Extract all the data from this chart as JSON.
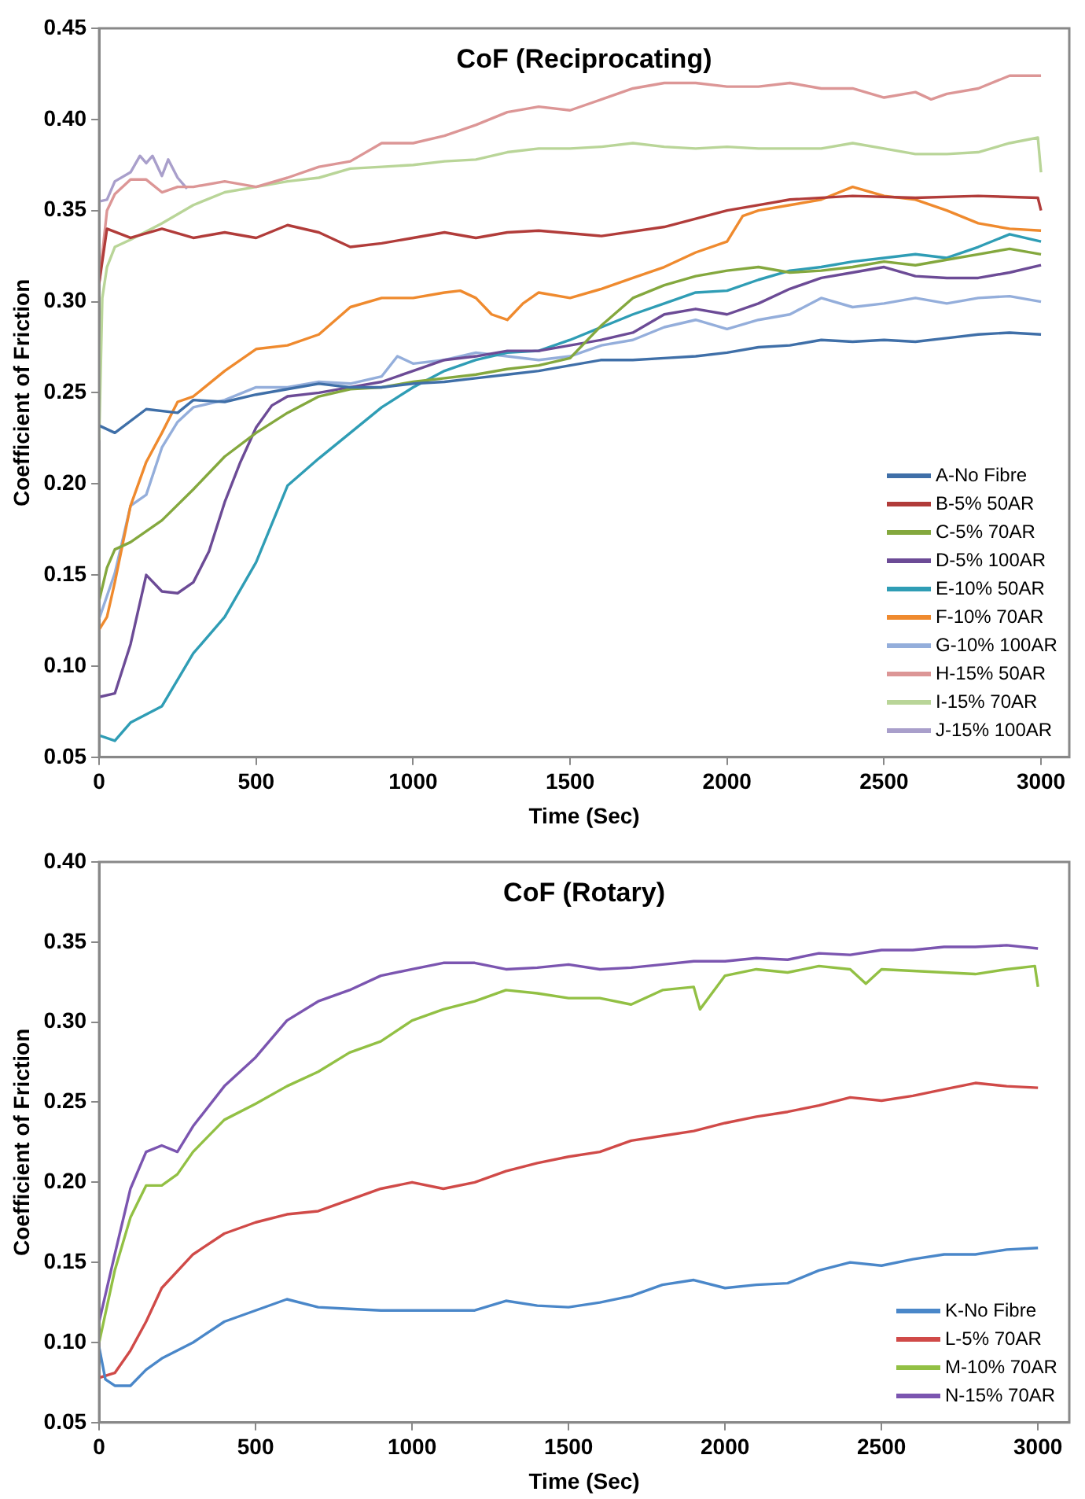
{
  "chart_data": [
    {
      "type": "line",
      "title": "CoF (Reciprocating)",
      "xlabel": "Time (Sec)",
      "ylabel": "Coefficient of Friction",
      "xlim": [
        0,
        3090
      ],
      "xticks": [
        0,
        500,
        1000,
        1500,
        2000,
        2500,
        3000
      ],
      "ylim": [
        0.05,
        0.45
      ],
      "yticks": [
        0.05,
        {
          "value": 0.1,
          "label": "0.10"
        },
        0.15,
        {
          "value": 0.2,
          "label": "0.20"
        },
        0.25,
        {
          "value": 0.3,
          "label": "0.30"
        },
        0.35,
        {
          "value": 0.4,
          "label": "0.40"
        },
        0.45
      ],
      "grid": false,
      "legend": "bottom right",
      "marker": "none",
      "line_style": "solid",
      "series": [
        {
          "name": "A-No Fibre",
          "color": "#3f6fa8",
          "x": [
            0,
            50,
            150,
            250,
            300,
            400,
            500,
            600,
            700,
            800,
            900,
            1000,
            1100,
            1200,
            1300,
            1400,
            1500,
            1600,
            1700,
            1800,
            1900,
            2000,
            2100,
            2200,
            2300,
            2400,
            2500,
            2600,
            2700,
            2800,
            2900,
            3000
          ],
          "values": [
            0.232,
            0.228,
            0.241,
            0.239,
            0.246,
            0.245,
            0.249,
            0.252,
            0.255,
            0.253,
            0.253,
            0.255,
            0.256,
            0.258,
            0.26,
            0.262,
            0.265,
            0.268,
            0.268,
            0.269,
            0.27,
            0.272,
            0.275,
            0.276,
            0.279,
            0.278,
            0.279,
            0.278,
            0.28,
            0.282,
            0.283,
            0.282
          ]
        },
        {
          "name": "B-5% 50AR",
          "color": "#b13c3a",
          "x": [
            0,
            25,
            100,
            200,
            300,
            400,
            500,
            600,
            700,
            800,
            900,
            1000,
            1100,
            1200,
            1300,
            1400,
            1600,
            1800,
            2000,
            2200,
            2400,
            2600,
            2800,
            2990,
            3000
          ],
          "values": [
            0.31,
            0.34,
            0.335,
            0.34,
            0.335,
            0.338,
            0.335,
            0.342,
            0.338,
            0.33,
            0.332,
            0.335,
            0.338,
            0.335,
            0.338,
            0.339,
            0.336,
            0.341,
            0.35,
            0.356,
            0.358,
            0.357,
            0.358,
            0.357,
            0.35
          ]
        },
        {
          "name": "C-5% 70AR",
          "color": "#84a83e",
          "x": [
            0,
            25,
            50,
            100,
            200,
            300,
            400,
            500,
            600,
            700,
            800,
            900,
            1000,
            1100,
            1200,
            1300,
            1400,
            1500,
            1600,
            1700,
            1800,
            1900,
            2000,
            2100,
            2200,
            2300,
            2400,
            2500,
            2600,
            2700,
            2800,
            2900,
            3000
          ],
          "values": [
            0.136,
            0.154,
            0.164,
            0.168,
            0.18,
            0.197,
            0.215,
            0.228,
            0.239,
            0.248,
            0.252,
            0.253,
            0.256,
            0.258,
            0.26,
            0.263,
            0.265,
            0.269,
            0.287,
            0.302,
            0.309,
            0.314,
            0.317,
            0.319,
            0.316,
            0.317,
            0.319,
            0.322,
            0.32,
            0.323,
            0.326,
            0.329,
            0.326
          ]
        },
        {
          "name": "D-5% 100AR",
          "color": "#6c4b96",
          "x": [
            0,
            50,
            100,
            150,
            200,
            250,
            300,
            350,
            400,
            450,
            500,
            550,
            600,
            700,
            800,
            900,
            1000,
            1100,
            1200,
            1300,
            1400,
            1500,
            1600,
            1700,
            1800,
            1900,
            2000,
            2100,
            2200,
            2300,
            2400,
            2500,
            2600,
            2700,
            2800,
            2900,
            3000
          ],
          "values": [
            0.083,
            0.085,
            0.112,
            0.15,
            0.141,
            0.14,
            0.146,
            0.163,
            0.19,
            0.212,
            0.231,
            0.243,
            0.248,
            0.25,
            0.253,
            0.256,
            0.262,
            0.268,
            0.27,
            0.273,
            0.273,
            0.276,
            0.279,
            0.283,
            0.293,
            0.296,
            0.293,
            0.299,
            0.307,
            0.313,
            0.316,
            0.319,
            0.314,
            0.313,
            0.313,
            0.316,
            0.32
          ]
        },
        {
          "name": "E-10% 50AR",
          "color": "#2f9db5",
          "x": [
            0,
            50,
            100,
            200,
            300,
            400,
            500,
            600,
            700,
            800,
            900,
            1000,
            1100,
            1200,
            1300,
            1400,
            1500,
            1600,
            1700,
            1800,
            1900,
            2000,
            2100,
            2200,
            2300,
            2400,
            2500,
            2600,
            2700,
            2800,
            2900,
            3000
          ],
          "values": [
            0.062,
            0.059,
            0.069,
            0.078,
            0.107,
            0.127,
            0.157,
            0.199,
            0.214,
            0.228,
            0.242,
            0.253,
            0.262,
            0.268,
            0.272,
            0.273,
            0.279,
            0.286,
            0.293,
            0.299,
            0.305,
            0.306,
            0.312,
            0.317,
            0.319,
            0.322,
            0.324,
            0.326,
            0.324,
            0.33,
            0.337,
            0.333
          ]
        },
        {
          "name": "F-10% 70AR",
          "color": "#ef8a2e",
          "x": [
            0,
            25,
            50,
            100,
            150,
            200,
            250,
            300,
            400,
            500,
            600,
            700,
            800,
            900,
            1000,
            1100,
            1150,
            1200,
            1250,
            1300,
            1350,
            1400,
            1500,
            1600,
            1700,
            1800,
            1900,
            2000,
            2050,
            2100,
            2200,
            2300,
            2400,
            2500,
            2600,
            2700,
            2800,
            2900,
            3000
          ],
          "values": [
            0.12,
            0.127,
            0.146,
            0.188,
            0.212,
            0.228,
            0.245,
            0.248,
            0.262,
            0.274,
            0.276,
            0.282,
            0.297,
            0.302,
            0.302,
            0.305,
            0.306,
            0.302,
            0.293,
            0.29,
            0.299,
            0.305,
            0.302,
            0.307,
            0.313,
            0.319,
            0.327,
            0.333,
            0.347,
            0.35,
            0.353,
            0.356,
            0.363,
            0.358,
            0.356,
            0.35,
            0.343,
            0.34,
            0.339
          ]
        },
        {
          "name": "G-10% 100AR",
          "color": "#94aedb",
          "x": [
            0,
            50,
            100,
            150,
            200,
            250,
            300,
            400,
            500,
            600,
            700,
            800,
            900,
            950,
            1000,
            1100,
            1200,
            1300,
            1400,
            1500,
            1600,
            1700,
            1800,
            1900,
            2000,
            2100,
            2200,
            2300,
            2400,
            2500,
            2600,
            2700,
            2800,
            2900,
            3000
          ],
          "values": [
            0.126,
            0.151,
            0.188,
            0.194,
            0.22,
            0.234,
            0.242,
            0.246,
            0.253,
            0.253,
            0.256,
            0.255,
            0.259,
            0.27,
            0.266,
            0.268,
            0.272,
            0.27,
            0.268,
            0.27,
            0.276,
            0.279,
            0.286,
            0.29,
            0.285,
            0.29,
            0.293,
            0.302,
            0.297,
            0.299,
            0.302,
            0.299,
            0.302,
            0.303,
            0.3
          ]
        },
        {
          "name": "H-15% 50AR",
          "color": "#dc9696",
          "x": [
            0,
            25,
            50,
            100,
            150,
            200,
            250,
            300,
            400,
            500,
            600,
            700,
            800,
            900,
            1000,
            1100,
            1200,
            1300,
            1400,
            1500,
            1600,
            1700,
            1800,
            1900,
            2000,
            2100,
            2200,
            2300,
            2400,
            2500,
            2600,
            2650,
            2700,
            2800,
            2900,
            3000
          ],
          "values": [
            0.31,
            0.35,
            0.359,
            0.367,
            0.367,
            0.36,
            0.363,
            0.363,
            0.366,
            0.363,
            0.368,
            0.374,
            0.377,
            0.387,
            0.387,
            0.391,
            0.397,
            0.404,
            0.407,
            0.405,
            0.411,
            0.417,
            0.42,
            0.42,
            0.418,
            0.418,
            0.42,
            0.417,
            0.417,
            0.412,
            0.415,
            0.411,
            0.414,
            0.417,
            0.424,
            0.424
          ]
        },
        {
          "name": "I-15% 70AR",
          "color": "#b9d598",
          "x": [
            0,
            10,
            25,
            50,
            100,
            200,
            300,
            400,
            500,
            600,
            700,
            800,
            900,
            1000,
            1100,
            1200,
            1300,
            1400,
            1500,
            1600,
            1700,
            1800,
            1900,
            2000,
            2100,
            2200,
            2300,
            2400,
            2500,
            2600,
            2700,
            2800,
            2900,
            2990,
            3000
          ],
          "values": [
            0.224,
            0.302,
            0.319,
            0.33,
            0.334,
            0.343,
            0.353,
            0.36,
            0.363,
            0.366,
            0.368,
            0.373,
            0.374,
            0.375,
            0.377,
            0.378,
            0.382,
            0.384,
            0.384,
            0.385,
            0.387,
            0.385,
            0.384,
            0.385,
            0.384,
            0.384,
            0.384,
            0.387,
            0.384,
            0.381,
            0.381,
            0.382,
            0.387,
            0.39,
            0.371
          ]
        },
        {
          "name": "J-15% 100AR",
          "color": "#a99fcb",
          "x": [
            0,
            25,
            50,
            100,
            130,
            150,
            170,
            200,
            220,
            250,
            280
          ],
          "values": [
            0.355,
            0.356,
            0.366,
            0.371,
            0.38,
            0.376,
            0.38,
            0.369,
            0.378,
            0.368,
            0.362
          ]
        }
      ]
    },
    {
      "type": "line",
      "title": "CoF (Rotary)",
      "xlabel": "Time (Sec)",
      "ylabel": "Coefficient of Friction",
      "xlim": [
        0,
        3100
      ],
      "xticks": [
        0,
        500,
        1000,
        1500,
        2000,
        2500,
        3000
      ],
      "ylim": [
        0.05,
        0.4
      ],
      "yticks": [
        0.05,
        {
          "value": 0.1,
          "label": "0.10"
        },
        0.15,
        {
          "value": 0.2,
          "label": "0.20"
        },
        0.25,
        {
          "value": 0.3,
          "label": "0.30"
        },
        0.35,
        {
          "value": 0.4,
          "label": "0.40"
        }
      ],
      "grid": false,
      "legend": "bottom right",
      "marker": "none",
      "line_style": "solid",
      "series": [
        {
          "name": "K-No Fibre",
          "color": "#4a87c9",
          "x": [
            0,
            20,
            50,
            100,
            150,
            200,
            300,
            400,
            500,
            600,
            700,
            800,
            900,
            1000,
            1100,
            1200,
            1300,
            1400,
            1500,
            1600,
            1700,
            1800,
            1900,
            2000,
            2100,
            2200,
            2300,
            2400,
            2500,
            2600,
            2700,
            2800,
            2900,
            3000
          ],
          "values": [
            0.097,
            0.077,
            0.073,
            0.073,
            0.083,
            0.09,
            0.1,
            0.113,
            0.12,
            0.127,
            0.122,
            0.121,
            0.12,
            0.12,
            0.12,
            0.12,
            0.126,
            0.123,
            0.122,
            0.125,
            0.129,
            0.136,
            0.139,
            0.134,
            0.136,
            0.137,
            0.145,
            0.15,
            0.148,
            0.152,
            0.155,
            0.155,
            0.158,
            0.159
          ]
        },
        {
          "name": "L-5% 70AR",
          "color": "#d04a48",
          "x": [
            0,
            50,
            100,
            150,
            200,
            300,
            400,
            500,
            600,
            700,
            800,
            900,
            1000,
            1100,
            1200,
            1300,
            1400,
            1500,
            1600,
            1700,
            1800,
            1900,
            2000,
            2100,
            2200,
            2300,
            2400,
            2500,
            2600,
            2700,
            2800,
            2900,
            3000
          ],
          "values": [
            0.078,
            0.081,
            0.095,
            0.113,
            0.134,
            0.155,
            0.168,
            0.175,
            0.18,
            0.182,
            0.189,
            0.196,
            0.2,
            0.196,
            0.2,
            0.207,
            0.212,
            0.216,
            0.219,
            0.226,
            0.229,
            0.232,
            0.237,
            0.241,
            0.244,
            0.248,
            0.253,
            0.251,
            0.254,
            0.258,
            0.262,
            0.26,
            0.259
          ]
        },
        {
          "name": "M-10% 70AR",
          "color": "#92c044",
          "x": [
            0,
            50,
            100,
            150,
            200,
            250,
            300,
            400,
            500,
            600,
            700,
            800,
            900,
            1000,
            1100,
            1200,
            1300,
            1400,
            1500,
            1600,
            1700,
            1800,
            1900,
            1920,
            2000,
            2100,
            2200,
            2300,
            2400,
            2450,
            2500,
            2600,
            2700,
            2800,
            2900,
            2990,
            3000
          ],
          "values": [
            0.1,
            0.145,
            0.178,
            0.198,
            0.198,
            0.205,
            0.219,
            0.239,
            0.249,
            0.26,
            0.269,
            0.281,
            0.288,
            0.301,
            0.308,
            0.313,
            0.32,
            0.318,
            0.315,
            0.315,
            0.311,
            0.32,
            0.322,
            0.308,
            0.329,
            0.333,
            0.331,
            0.335,
            0.333,
            0.324,
            0.333,
            0.332,
            0.331,
            0.33,
            0.333,
            0.335,
            0.322
          ]
        },
        {
          "name": "N-15% 70AR",
          "color": "#7b55b0",
          "x": [
            0,
            50,
            100,
            150,
            200,
            250,
            300,
            400,
            500,
            600,
            700,
            800,
            900,
            1000,
            1100,
            1200,
            1300,
            1400,
            1500,
            1600,
            1700,
            1800,
            1900,
            2000,
            2100,
            2200,
            2300,
            2400,
            2500,
            2600,
            2700,
            2800,
            2900,
            3000
          ],
          "values": [
            0.113,
            0.155,
            0.196,
            0.219,
            0.223,
            0.219,
            0.235,
            0.26,
            0.278,
            0.301,
            0.313,
            0.32,
            0.329,
            0.333,
            0.337,
            0.337,
            0.333,
            0.334,
            0.336,
            0.333,
            0.334,
            0.336,
            0.338,
            0.338,
            0.34,
            0.339,
            0.343,
            0.342,
            0.345,
            0.345,
            0.347,
            0.347,
            0.348,
            0.346
          ]
        }
      ]
    }
  ]
}
